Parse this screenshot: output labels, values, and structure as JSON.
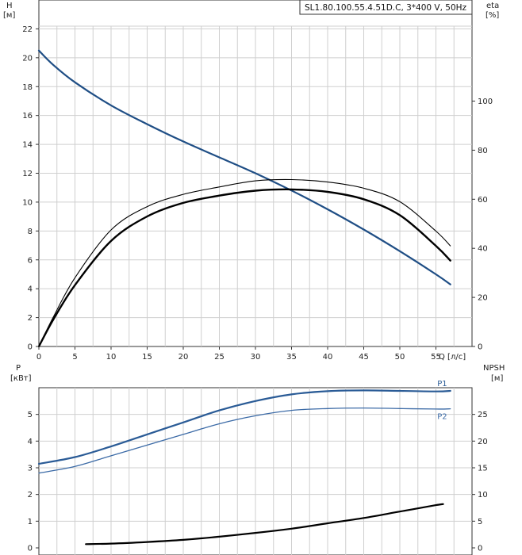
{
  "colors": {
    "head": "#1f4e85",
    "p1": "#2a5b96",
    "p2": "#3b6aa6",
    "eta": "#000000",
    "npsh": "#000000",
    "grid": "#cfcfcf",
    "axis": "#333333"
  },
  "chart_data": [
    {
      "type": "line",
      "title": "SL1.80.100.55.4.51D.C, 3*400 V, 50Hz",
      "xlabel": "Q [л/с]",
      "xlim": [
        0,
        60
      ],
      "xticks": [
        0,
        5,
        10,
        15,
        20,
        25,
        30,
        35,
        40,
        45,
        50,
        55
      ],
      "ylabel_left": "H\n[м]",
      "ylim_left": [
        0,
        24
      ],
      "yticks_left": [
        0,
        2,
        4,
        6,
        8,
        10,
        12,
        14,
        16,
        18,
        20,
        22
      ],
      "ylabel_right": "eta\n[%]",
      "ylim_right": [
        0,
        141.2
      ],
      "yticks_right": [
        0,
        20,
        40,
        60,
        80,
        100
      ],
      "grid": true,
      "series": [
        {
          "axis": "left",
          "x": [
            0,
            2,
            5,
            10,
            15,
            20,
            25,
            30,
            35,
            40,
            45,
            50,
            55,
            57
          ],
          "values": [
            20.5,
            19.5,
            18.3,
            16.7,
            15.4,
            14.2,
            13.1,
            12.0,
            10.8,
            9.5,
            8.1,
            6.6,
            5.0,
            4.3
          ]
        },
        {
          "axis": "right",
          "x": [
            0,
            2,
            5,
            10,
            15,
            20,
            25,
            30,
            35,
            40,
            45,
            50,
            55,
            57
          ],
          "values": [
            0,
            11,
            25,
            43,
            53,
            58.5,
            61.5,
            63.5,
            64,
            63,
            60,
            53.5,
            41,
            35
          ]
        },
        {
          "axis": "right",
          "x": [
            0,
            2,
            5,
            10,
            15,
            20,
            25,
            30,
            35,
            40,
            45,
            50,
            55,
            57
          ],
          "values": [
            0,
            12,
            28,
            47.5,
            57,
            62,
            65,
            67.5,
            68,
            67,
            64.5,
            59,
            47,
            41
          ]
        }
      ]
    },
    {
      "type": "line",
      "xlabel": "",
      "xlim": [
        0,
        60
      ],
      "ylabel_left": "P\n[кВт]",
      "ylim_left": [
        0,
        6
      ],
      "yticks_left": [
        0,
        1,
        2,
        3,
        4,
        5
      ],
      "ylabel_right": "NPSH\n[м]",
      "ylim_right": [
        0,
        30
      ],
      "yticks_right": [
        0,
        5,
        10,
        15,
        20,
        25
      ],
      "grid": true,
      "series": [
        {
          "name": "P1",
          "axis": "left",
          "x": [
            0,
            5,
            10,
            15,
            20,
            25,
            30,
            35,
            40,
            45,
            50,
            55,
            57
          ],
          "values": [
            3.15,
            3.4,
            3.8,
            4.25,
            4.7,
            5.15,
            5.5,
            5.75,
            5.87,
            5.9,
            5.88,
            5.86,
            5.88
          ]
        },
        {
          "name": "P2",
          "axis": "left",
          "x": [
            0,
            5,
            10,
            15,
            20,
            25,
            30,
            35,
            40,
            45,
            50,
            55,
            57
          ],
          "values": [
            2.8,
            3.05,
            3.45,
            3.85,
            4.25,
            4.65,
            4.95,
            5.15,
            5.22,
            5.24,
            5.22,
            5.2,
            5.21
          ]
        },
        {
          "axis": "right",
          "x": [
            6.5,
            10,
            15,
            20,
            25,
            30,
            35,
            40,
            45,
            50,
            55,
            56
          ],
          "values": [
            0.7,
            0.8,
            1.1,
            1.5,
            2.1,
            2.8,
            3.6,
            4.6,
            5.6,
            6.8,
            8,
            8.2
          ]
        }
      ]
    }
  ]
}
